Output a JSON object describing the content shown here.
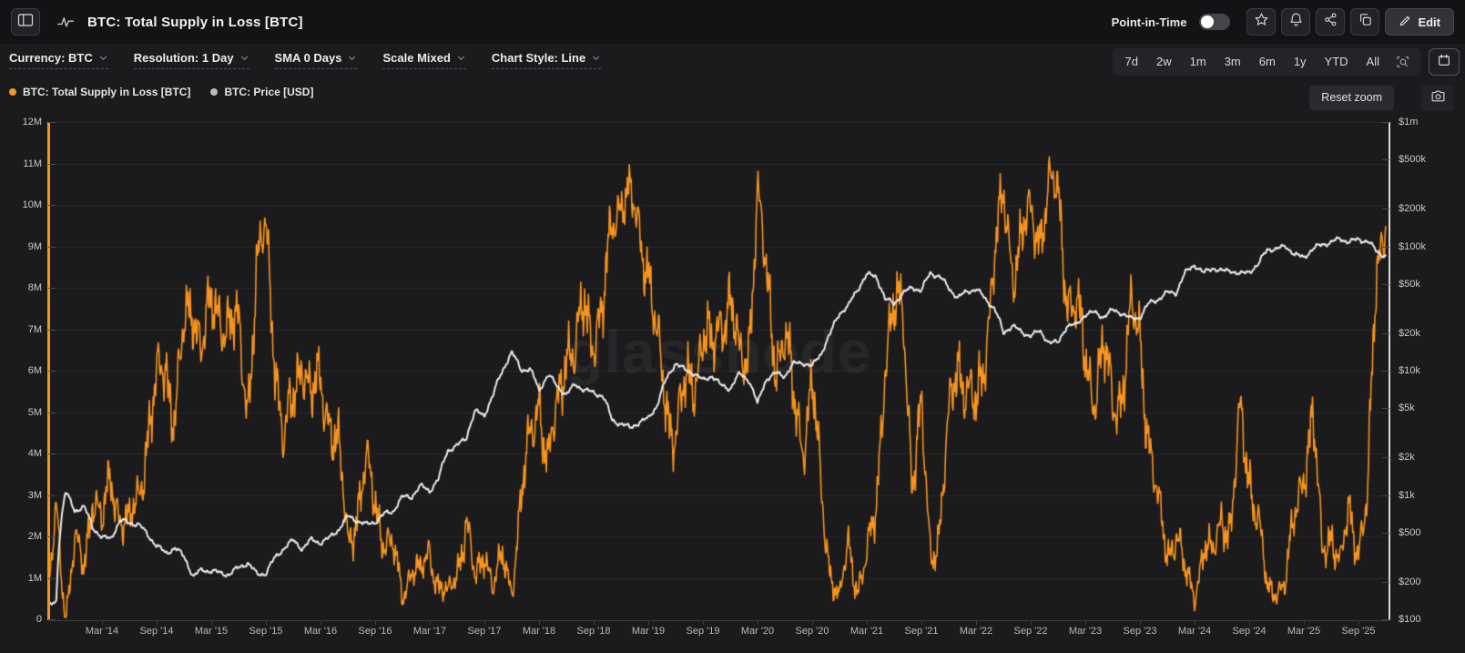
{
  "header": {
    "title": "BTC: Total Supply in Loss [BTC]",
    "point_in_time_label": "Point-in-Time",
    "point_in_time_enabled": false,
    "edit_label": "Edit"
  },
  "filters": [
    {
      "label": "Currency: BTC"
    },
    {
      "label": "Resolution: 1 Day"
    },
    {
      "label": "SMA 0 Days"
    },
    {
      "label": "Scale Mixed"
    },
    {
      "label": "Chart Style: Line"
    }
  ],
  "range_buttons": [
    "7d",
    "2w",
    "1m",
    "3m",
    "6m",
    "1y",
    "YTD",
    "All"
  ],
  "legend": [
    {
      "label": "BTC: Total Supply in Loss [BTC]",
      "color": "#f7941d"
    },
    {
      "label": "BTC: Price [USD]",
      "color": "#bcbcbc"
    }
  ],
  "reset_zoom_label": "Reset zoom",
  "watermark": "glassnode",
  "colors": {
    "accent_orange": "#f7941d",
    "price_line": "#ebebeb",
    "background": "#1b1b1e",
    "header_background": "#131316",
    "grid": "#2a2a2d"
  },
  "chart_data": {
    "type": "line",
    "title": "BTC: Total Supply in Loss [BTC] with BTC: Price [USD]",
    "x_axis": {
      "labels": [
        "Mar '14",
        "Sep '14",
        "Mar '15",
        "Sep '15",
        "Mar '16",
        "Sep '16",
        "Mar '17",
        "Sep '17",
        "Mar '18",
        "Sep '18",
        "Mar '19",
        "Sep '19",
        "Mar '20",
        "Sep '20",
        "Mar '21",
        "Sep '21",
        "Mar '22",
        "Sep '22",
        "Mar '23",
        "Sep '23",
        "Mar '24",
        "Sep '24",
        "Mar '25",
        "Sep '25"
      ],
      "start_month": "2013-09",
      "end_month": "2025-12",
      "cadence": "monthly"
    },
    "left_axis": {
      "name": "Total Supply in Loss [BTC]",
      "scale": "linear",
      "range": [
        0,
        12000000
      ],
      "tick_labels": [
        "12M",
        "11M",
        "10M",
        "9M",
        "8M",
        "7M",
        "6M",
        "5M",
        "4M",
        "3M",
        "2M",
        "1M",
        "0"
      ]
    },
    "right_axis": {
      "name": "Price [USD]",
      "scale": "log",
      "range": [
        100,
        1000000
      ],
      "tick_labels": [
        "$1m",
        "$500k",
        "$200k",
        "$100k",
        "$50k",
        "$20k",
        "$10k",
        "$5k",
        "$2k",
        "$1k",
        "$500",
        "$200",
        "$100"
      ],
      "tick_values": [
        1000000,
        500000,
        200000,
        100000,
        50000,
        20000,
        10000,
        5000,
        2000,
        1000,
        500,
        200,
        100
      ]
    },
    "grid": true,
    "legend_position": "top-left",
    "months": [
      "2013-09",
      "2013-10",
      "2013-11",
      "2013-12",
      "2014-01",
      "2014-02",
      "2014-03",
      "2014-04",
      "2014-05",
      "2014-06",
      "2014-07",
      "2014-08",
      "2014-09",
      "2014-10",
      "2014-11",
      "2014-12",
      "2015-01",
      "2015-02",
      "2015-03",
      "2015-04",
      "2015-05",
      "2015-06",
      "2015-07",
      "2015-08",
      "2015-09",
      "2015-10",
      "2015-11",
      "2015-12",
      "2016-01",
      "2016-02",
      "2016-03",
      "2016-04",
      "2016-05",
      "2016-06",
      "2016-07",
      "2016-08",
      "2016-09",
      "2016-10",
      "2016-11",
      "2016-12",
      "2017-01",
      "2017-02",
      "2017-03",
      "2017-04",
      "2017-05",
      "2017-06",
      "2017-07",
      "2017-08",
      "2017-09",
      "2017-10",
      "2017-11",
      "2017-12",
      "2018-01",
      "2018-02",
      "2018-03",
      "2018-04",
      "2018-05",
      "2018-06",
      "2018-07",
      "2018-08",
      "2018-09",
      "2018-10",
      "2018-11",
      "2018-12",
      "2019-01",
      "2019-02",
      "2019-03",
      "2019-04",
      "2019-05",
      "2019-06",
      "2019-07",
      "2019-08",
      "2019-09",
      "2019-10",
      "2019-11",
      "2019-12",
      "2020-01",
      "2020-02",
      "2020-03",
      "2020-04",
      "2020-05",
      "2020-06",
      "2020-07",
      "2020-08",
      "2020-09",
      "2020-10",
      "2020-11",
      "2020-12",
      "2021-01",
      "2021-02",
      "2021-03",
      "2021-04",
      "2021-05",
      "2021-06",
      "2021-07",
      "2021-08",
      "2021-09",
      "2021-10",
      "2021-11",
      "2021-12",
      "2022-01",
      "2022-02",
      "2022-03",
      "2022-04",
      "2022-05",
      "2022-06",
      "2022-07",
      "2022-08",
      "2022-09",
      "2022-10",
      "2022-11",
      "2022-12",
      "2023-01",
      "2023-02",
      "2023-03",
      "2023-04",
      "2023-05",
      "2023-06",
      "2023-07",
      "2023-08",
      "2023-09",
      "2023-10",
      "2023-11",
      "2023-12",
      "2024-01",
      "2024-02",
      "2024-03",
      "2024-04",
      "2024-05",
      "2024-06",
      "2024-07",
      "2024-08",
      "2024-09",
      "2024-10",
      "2024-11",
      "2024-12",
      "2025-01",
      "2025-02",
      "2025-03",
      "2025-04",
      "2025-05",
      "2025-06",
      "2025-07",
      "2025-08",
      "2025-09",
      "2025-10",
      "2025-11",
      "2025-12"
    ],
    "series": [
      {
        "name": "BTC: Total Supply in Loss [BTC]",
        "color": "#f7941d",
        "axis": "left",
        "unit": "million BTC",
        "values": [
          0.2,
          2.6,
          0.1,
          1.8,
          1.2,
          3.2,
          2.2,
          3.4,
          2.6,
          2.1,
          3.0,
          4.5,
          5.5,
          6.2,
          5.0,
          6.8,
          7.6,
          6.8,
          7.3,
          7.5,
          7.2,
          6.8,
          5.2,
          8.4,
          9.3,
          6.5,
          4.2,
          5.2,
          6.6,
          5.2,
          5.6,
          5.0,
          4.0,
          1.8,
          2.7,
          3.6,
          2.8,
          2.0,
          1.6,
          0.6,
          1.3,
          1.0,
          1.7,
          0.8,
          0.5,
          1.2,
          2.4,
          0.8,
          1.8,
          0.8,
          1.4,
          0.8,
          2.8,
          4.2,
          5.6,
          3.6,
          5.0,
          6.8,
          6.2,
          7.6,
          7.0,
          7.2,
          9.6,
          10.3,
          10.0,
          9.4,
          8.6,
          6.4,
          5.2,
          4.6,
          5.4,
          5.8,
          7.0,
          6.2,
          7.4,
          7.8,
          6.0,
          6.6,
          10.3,
          8.0,
          6.4,
          6.8,
          5.2,
          4.4,
          5.6,
          3.0,
          1.2,
          0.4,
          1.8,
          0.8,
          1.4,
          2.6,
          6.4,
          7.2,
          7.6,
          3.4,
          4.8,
          1.6,
          2.2,
          4.6,
          6.4,
          5.6,
          4.8,
          6.6,
          8.8,
          10.0,
          8.6,
          9.2,
          9.6,
          9.4,
          10.4,
          10.2,
          8.0,
          7.4,
          6.2,
          5.6,
          6.4,
          5.2,
          5.6,
          7.2,
          6.8,
          4.4,
          2.6,
          1.6,
          2.2,
          1.0,
          0.6,
          1.8,
          1.4,
          2.6,
          2.2,
          4.8,
          3.6,
          2.4,
          0.6,
          0.8,
          0.9,
          2.4,
          3.8,
          4.8,
          1.6,
          2.2,
          1.2,
          2.6,
          1.8,
          2.8,
          8.5,
          9.9
        ]
      },
      {
        "name": "BTC: Price [USD]",
        "color": "#ebebeb",
        "axis": "right",
        "unit": "USD",
        "values": [
          125,
          140,
          1050,
          750,
          800,
          550,
          450,
          450,
          620,
          600,
          580,
          480,
          390,
          340,
          375,
          320,
          220,
          250,
          245,
          235,
          230,
          260,
          285,
          230,
          235,
          310,
          375,
          430,
          370,
          435,
          415,
          450,
          530,
          670,
          625,
          575,
          610,
          700,
          745,
          960,
          970,
          1180,
          1080,
          1350,
          2300,
          2480,
          2870,
          4700,
          4340,
          6450,
          10000,
          14000,
          10200,
          10300,
          6900,
          9250,
          7500,
          6400,
          7750,
          7000,
          6600,
          6300,
          4000,
          3740,
          3460,
          3850,
          4100,
          5320,
          8550,
          11500,
          10100,
          9600,
          8300,
          9150,
          7550,
          7200,
          9350,
          8550,
          5300,
          8650,
          9450,
          9140,
          11350,
          11650,
          10780,
          13800,
          19700,
          29000,
          33100,
          45200,
          58800,
          57800,
          37300,
          35000,
          41600,
          47100,
          43800,
          61300,
          57000,
          46200,
          38500,
          43200,
          45500,
          37700,
          31800,
          19900,
          23300,
          20050,
          19400,
          20500,
          17100,
          16550,
          23100,
          23150,
          28500,
          29250,
          27200,
          30480,
          29230,
          25930,
          26970,
          34650,
          37700,
          42270,
          42580,
          61200,
          71330,
          60640,
          67500,
          62680,
          64620,
          58970,
          63330,
          70220,
          96400,
          93430,
          102000,
          84350,
          82550,
          94200,
          104600,
          107100,
          115800,
          108200,
          114000,
          110000,
          91000,
          84000
        ]
      }
    ],
    "visual_noise": {
      "loss_noise": "high",
      "price_noise": "low"
    }
  }
}
